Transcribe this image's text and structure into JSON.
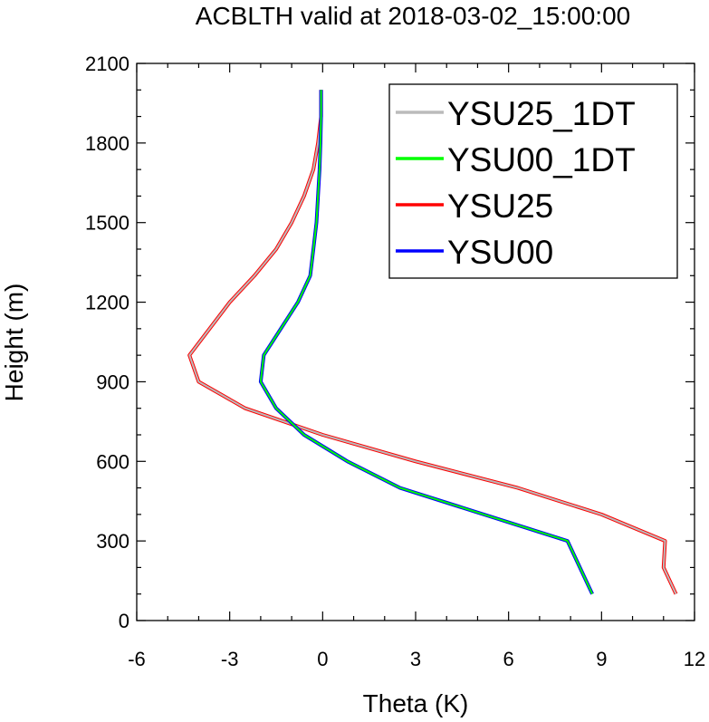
{
  "chart_data": {
    "type": "line",
    "title": "ACBLTH valid at 2018-03-02_15:00:00",
    "xlabel": "Theta (K)",
    "ylabel": "Height (m)",
    "xlim": [
      -6,
      12
    ],
    "ylim": [
      0,
      2100
    ],
    "xticks": [
      "-6",
      "-3",
      "0",
      "3",
      "6",
      "9",
      "12"
    ],
    "yticks": [
      "0",
      "300",
      "600",
      "900",
      "1200",
      "1500",
      "1800",
      "2100"
    ],
    "legend_position": "top-right",
    "series": [
      {
        "name": "YSU25_1DT",
        "color": "#bbbbbb",
        "points": [
          [
            11.4,
            100
          ],
          [
            11.0,
            200
          ],
          [
            11.05,
            300
          ],
          [
            9.0,
            400
          ],
          [
            6.3,
            500
          ],
          [
            3.0,
            600
          ],
          [
            0.0,
            700
          ],
          [
            -2.5,
            800
          ],
          [
            -4.0,
            900
          ],
          [
            -4.3,
            1000
          ],
          [
            -3.0,
            1200
          ],
          [
            -2.2,
            1300
          ],
          [
            -1.5,
            1400
          ],
          [
            -1.0,
            1500
          ],
          [
            -0.6,
            1600
          ],
          [
            -0.3,
            1700
          ],
          [
            -0.15,
            1800
          ],
          [
            -0.05,
            1900
          ],
          [
            -0.05,
            2000
          ]
        ]
      },
      {
        "name": "YSU00_1DT",
        "color": "#00ff00",
        "points": [
          [
            8.7,
            100
          ],
          [
            8.3,
            200
          ],
          [
            7.9,
            300
          ],
          [
            5.2,
            400
          ],
          [
            2.5,
            500
          ],
          [
            0.8,
            600
          ],
          [
            -0.6,
            700
          ],
          [
            -1.5,
            800
          ],
          [
            -2.0,
            900
          ],
          [
            -1.9,
            1000
          ],
          [
            -0.8,
            1200
          ],
          [
            -0.4,
            1300
          ],
          [
            -0.3,
            1400
          ],
          [
            -0.2,
            1500
          ],
          [
            -0.15,
            1600
          ],
          [
            -0.1,
            1700
          ],
          [
            -0.07,
            1800
          ],
          [
            -0.05,
            1900
          ],
          [
            -0.05,
            2000
          ]
        ]
      },
      {
        "name": "YSU25",
        "color": "#ff0000",
        "points": [
          [
            11.4,
            100
          ],
          [
            11.0,
            200
          ],
          [
            11.05,
            300
          ],
          [
            9.0,
            400
          ],
          [
            6.3,
            500
          ],
          [
            3.0,
            600
          ],
          [
            0.0,
            700
          ],
          [
            -2.5,
            800
          ],
          [
            -4.0,
            900
          ],
          [
            -4.3,
            1000
          ],
          [
            -3.0,
            1200
          ],
          [
            -2.2,
            1300
          ],
          [
            -1.5,
            1400
          ],
          [
            -1.0,
            1500
          ],
          [
            -0.6,
            1600
          ],
          [
            -0.3,
            1700
          ],
          [
            -0.15,
            1800
          ],
          [
            -0.05,
            1900
          ],
          [
            -0.05,
            2000
          ]
        ]
      },
      {
        "name": "YSU00",
        "color": "#0000ff",
        "points": [
          [
            8.7,
            100
          ],
          [
            8.3,
            200
          ],
          [
            7.9,
            300
          ],
          [
            5.2,
            400
          ],
          [
            2.5,
            500
          ],
          [
            0.8,
            600
          ],
          [
            -0.6,
            700
          ],
          [
            -1.5,
            800
          ],
          [
            -2.0,
            900
          ],
          [
            -1.9,
            1000
          ],
          [
            -0.8,
            1200
          ],
          [
            -0.4,
            1300
          ],
          [
            -0.3,
            1400
          ],
          [
            -0.2,
            1500
          ],
          [
            -0.15,
            1600
          ],
          [
            -0.1,
            1700
          ],
          [
            -0.07,
            1800
          ],
          [
            -0.05,
            1900
          ],
          [
            -0.05,
            2000
          ]
        ]
      }
    ]
  }
}
